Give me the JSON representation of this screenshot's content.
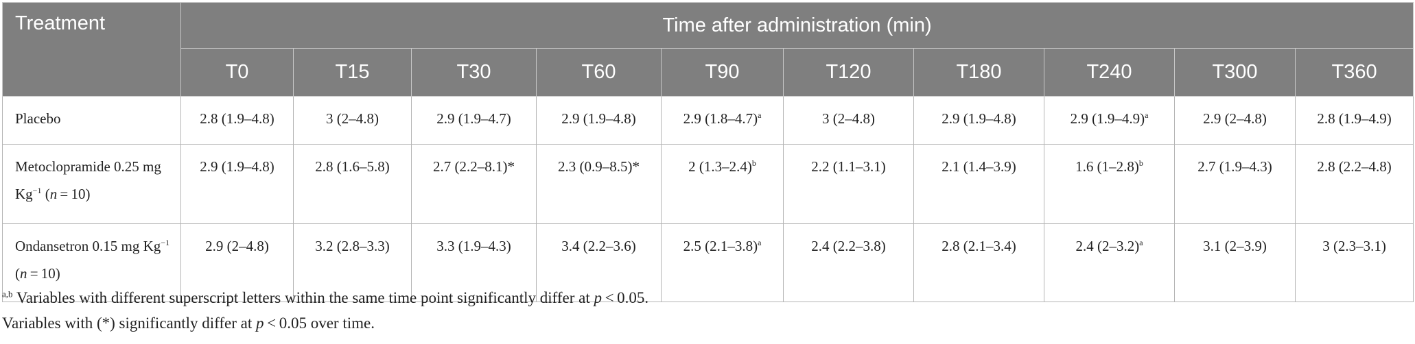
{
  "table": {
    "treatment_header": "Treatment",
    "time_header": "Time after administration (min)",
    "time_points": [
      "T0",
      "T15",
      "T30",
      "T60",
      "T90",
      "T120",
      "T180",
      "T240",
      "T300",
      "T360"
    ],
    "rows": [
      {
        "treatment": [
          {
            "t": "Placebo"
          }
        ],
        "cells": [
          {
            "v": "2.8 (1.9–4.8)",
            "s": ""
          },
          {
            "v": "3 (2–4.8)",
            "s": ""
          },
          {
            "v": "2.9 (1.9–4.7)",
            "s": ""
          },
          {
            "v": "2.9 (1.9–4.8)",
            "s": ""
          },
          {
            "v": "2.9 (1.8–4.7)",
            "s": "a"
          },
          {
            "v": "3 (2–4.8)",
            "s": ""
          },
          {
            "v": "2.9 (1.9–4.8)",
            "s": ""
          },
          {
            "v": "2.9 (1.9–4.9)",
            "s": "a"
          },
          {
            "v": "2.9 (2–4.8)",
            "s": ""
          },
          {
            "v": "2.8 (1.9–4.9)",
            "s": ""
          }
        ]
      },
      {
        "treatment": [
          {
            "t": "Metoclopramide 0.25 mg Kg"
          },
          {
            "sup": "−1"
          },
          {
            "t": " ("
          },
          {
            "i": "n"
          },
          {
            "t": " = 10)"
          }
        ],
        "cells": [
          {
            "v": "2.9 (1.9–4.8)",
            "s": ""
          },
          {
            "v": "2.8 (1.6–5.8)",
            "s": ""
          },
          {
            "v": "2.7 (2.2–8.1)*",
            "s": ""
          },
          {
            "v": "2.3 (0.9–8.5)*",
            "s": ""
          },
          {
            "v": "2 (1.3–2.4)",
            "s": "b"
          },
          {
            "v": "2.2 (1.1–3.1)",
            "s": ""
          },
          {
            "v": "2.1 (1.4–3.9)",
            "s": ""
          },
          {
            "v": "1.6 (1–2.8)",
            "s": "b"
          },
          {
            "v": "2.7 (1.9–4.3)",
            "s": ""
          },
          {
            "v": "2.8 (2.2–4.8)",
            "s": ""
          }
        ]
      },
      {
        "treatment": [
          {
            "t": "Ondansetron 0.15 mg Kg"
          },
          {
            "sup": "−1"
          },
          {
            "t": " ("
          },
          {
            "i": "n"
          },
          {
            "t": " = 10)"
          }
        ],
        "cells": [
          {
            "v": "2.9 (2–4.8)",
            "s": ""
          },
          {
            "v": "3.2 (2.8–3.3)",
            "s": ""
          },
          {
            "v": "3.3 (1.9–4.3)",
            "s": ""
          },
          {
            "v": "3.4 (2.2–3.6)",
            "s": ""
          },
          {
            "v": "2.5 (2.1–3.8)",
            "s": "a"
          },
          {
            "v": "2.4 (2.2–3.8)",
            "s": ""
          },
          {
            "v": "2.8 (2.1–3.4)",
            "s": ""
          },
          {
            "v": "2.4 (2–3.2)",
            "s": "a"
          },
          {
            "v": "3.1 (2–3.9)",
            "s": ""
          },
          {
            "v": "3 (2.3–3.1)",
            "s": ""
          }
        ]
      }
    ]
  },
  "footnotes": {
    "note1": {
      "sup": "a,b",
      "text_a": " Variables with different superscript letters within the same time point significantly differ at ",
      "p": "p",
      "text_b": " < 0.05."
    },
    "note2": {
      "text_a": "Variables with (*) significantly differ at ",
      "p": "p",
      "text_b": " < 0.05 over time."
    }
  }
}
